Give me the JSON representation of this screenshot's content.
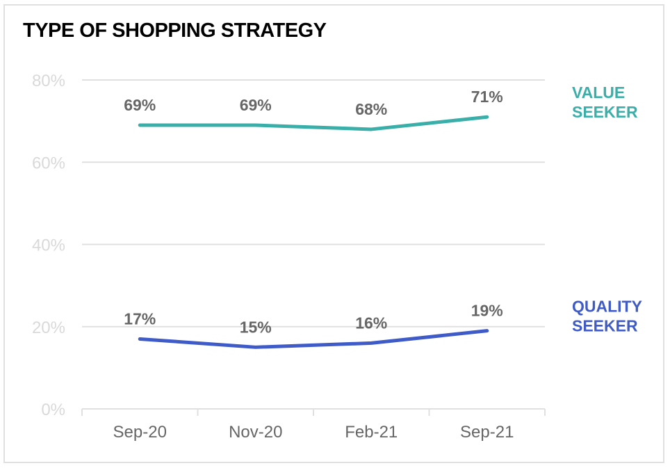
{
  "chart_data": {
    "type": "line",
    "title": "TYPE OF SHOPPING STRATEGY",
    "categories": [
      "Sep-20",
      "Nov-20",
      "Feb-21",
      "Sep-21"
    ],
    "y_ticks": [
      "0%",
      "20%",
      "40%",
      "60%",
      "80%"
    ],
    "ylim": [
      0,
      80
    ],
    "grid": true,
    "legend": "right (inline labels)",
    "series": [
      {
        "name": "VALUE SEEKER",
        "name_lines": [
          "VALUE",
          "SEEKER"
        ],
        "values": [
          69,
          69,
          68,
          71
        ],
        "labels": [
          "69%",
          "69%",
          "68%",
          "71%"
        ],
        "color": "#3aafa9"
      },
      {
        "name": "QUALITY SEEKER",
        "name_lines": [
          "QUALITY",
          "SEEKER"
        ],
        "values": [
          17,
          15,
          16,
          19
        ],
        "labels": [
          "17%",
          "15%",
          "16%",
          "19%"
        ],
        "color": "#3f5bc8"
      }
    ],
    "colors": {
      "grid": "#e0e0e0",
      "tick_label": "#d9d9d9",
      "category_label": "#666666",
      "data_label": "#666666"
    }
  }
}
